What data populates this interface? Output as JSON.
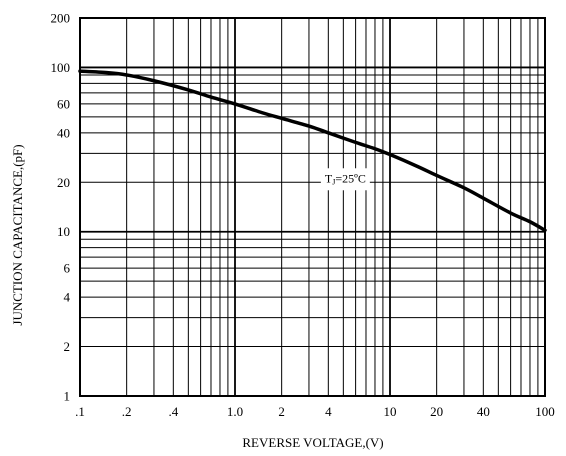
{
  "chart_data": {
    "type": "line",
    "xlabel": "REVERSE VOLTAGE,(V)",
    "ylabel": "JUNCTION CAPACITANCE,(pF)",
    "x_scale": "log",
    "y_scale": "log",
    "xlim": [
      0.1,
      100
    ],
    "ylim": [
      1,
      200
    ],
    "grid": true,
    "x_ticks": [
      {
        "value": 0.1,
        "label": ".1"
      },
      {
        "value": 0.2,
        "label": ".2"
      },
      {
        "value": 0.4,
        "label": ".4"
      },
      {
        "value": 1,
        "label": "1.0"
      },
      {
        "value": 2,
        "label": "2"
      },
      {
        "value": 4,
        "label": "4"
      },
      {
        "value": 10,
        "label": "10"
      },
      {
        "value": 20,
        "label": "20"
      },
      {
        "value": 40,
        "label": "40"
      },
      {
        "value": 100,
        "label": "100"
      }
    ],
    "y_ticks": [
      {
        "value": 1,
        "label": "1"
      },
      {
        "value": 2,
        "label": "2"
      },
      {
        "value": 4,
        "label": "4"
      },
      {
        "value": 6,
        "label": "6"
      },
      {
        "value": 10,
        "label": "10"
      },
      {
        "value": 20,
        "label": "20"
      },
      {
        "value": 40,
        "label": "40"
      },
      {
        "value": 60,
        "label": "60"
      },
      {
        "value": 100,
        "label": "100"
      },
      {
        "value": 200,
        "label": "200"
      }
    ],
    "series": [
      {
        "x": [
          0.1,
          0.15,
          0.2,
          0.3,
          0.5,
          0.7,
          1,
          1.5,
          2,
          3,
          4,
          6,
          8,
          10,
          15,
          20,
          30,
          40,
          60,
          80,
          100
        ],
        "y": [
          95,
          93,
          90,
          83,
          73,
          66,
          60,
          53,
          49,
          44,
          40,
          35,
          32,
          29.5,
          25,
          22,
          18.5,
          16,
          13,
          11.5,
          10.2
        ]
      }
    ],
    "annotation": {
      "text": "T",
      "sub": "J",
      "rest": "=25ºC",
      "x": 3.8,
      "y": 20
    }
  }
}
